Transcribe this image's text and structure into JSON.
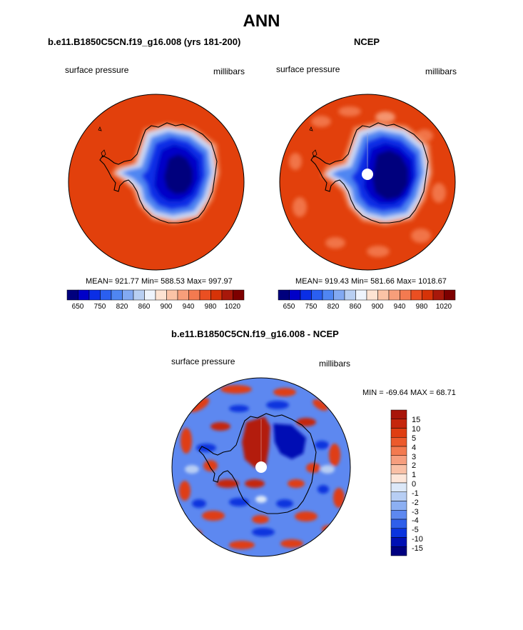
{
  "page": {
    "title": "ANN"
  },
  "panels": [
    {
      "case_title": "b.e11.B1850C5CN.f19_g16.008 (yrs 181-200)",
      "variable": "surface pressure",
      "units": "millibars",
      "stats": "MEAN= 921.77  Min= 588.53  Max= 997.97",
      "colorbar_ticks": [
        "650",
        "750",
        "820",
        "860",
        "900",
        "940",
        "980",
        "1020"
      ],
      "colors": [
        "#00007d",
        "#0000c8",
        "#0a2ee6",
        "#2a5ff0",
        "#4f86f2",
        "#82a9f2",
        "#b8cff2",
        "#eef4fc",
        "#fde3d2",
        "#fbc3a6",
        "#f79e7a",
        "#f37a50",
        "#ea4f22",
        "#d63308",
        "#a8180a",
        "#7d0000"
      ]
    },
    {
      "case_title": "NCEP",
      "variable": "surface pressure",
      "units": "millibars",
      "stats": "MEAN= 919.43  Min= 581.66  Max= 1018.67",
      "colorbar_ticks": [
        "650",
        "750",
        "820",
        "860",
        "900",
        "940",
        "980",
        "1020"
      ],
      "colors": [
        "#00007d",
        "#0000c8",
        "#0a2ee6",
        "#2a5ff0",
        "#4f86f2",
        "#82a9f2",
        "#b8cff2",
        "#eef4fc",
        "#fde3d2",
        "#fbc3a6",
        "#f79e7a",
        "#f37a50",
        "#ea4f22",
        "#d63308",
        "#a8180a",
        "#7d0000"
      ]
    }
  ],
  "diff_panel": {
    "case_title": "b.e11.B1850C5CN.f19_g16.008 - NCEP",
    "variable": "surface pressure",
    "units": "millibars",
    "stats": "MIN = -69.64 MAX =  68.71",
    "colorbar_labels": [
      "15",
      "10",
      "5",
      "4",
      "3",
      "2",
      "1",
      "0",
      "-1",
      "-2",
      "-3",
      "-4",
      "-5",
      "-10",
      "-15"
    ],
    "colors": [
      "#a8150a",
      "#c5260c",
      "#df3e12",
      "#ec5a2c",
      "#f37a50",
      "#f69e7e",
      "#f9c0a6",
      "#fde6d9",
      "#dce8f8",
      "#b7cef4",
      "#8caff2",
      "#5d88f0",
      "#2f5fea",
      "#0a34de",
      "#0010b4",
      "#000080"
    ]
  }
}
